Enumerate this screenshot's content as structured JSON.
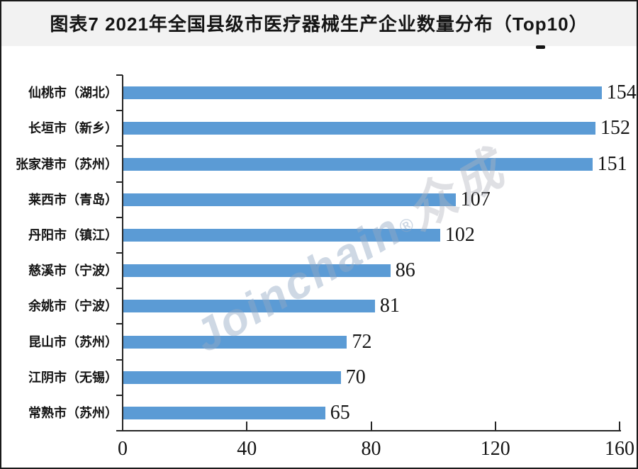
{
  "title": "图表7 2021年全国县级市医疗器械生产企业数量分布（Top10）",
  "watermark": {
    "brand": "Joinchain",
    "registered_mark": "®",
    "brand_cjk": "众成"
  },
  "colors": {
    "bar": "#5B9BD5",
    "title_band_bg": "#F2F2F2",
    "axis": "#262626",
    "text": "#141414"
  },
  "chart_data": {
    "type": "bar",
    "orientation": "horizontal",
    "title": "图表7 2021年全国县级市医疗器械生产企业数量分布（Top10）",
    "categories": [
      "仙桃市（湖北）",
      "长垣市（新乡）",
      "张家港市（苏州）",
      "莱西市（青岛）",
      "丹阳市（镇江）",
      "慈溪市（宁波）",
      "余姚市（宁波）",
      "昆山市（苏州）",
      "江阴市（无锡）",
      "常熟市（苏州）"
    ],
    "values": [
      154,
      152,
      151,
      107,
      102,
      86,
      81,
      72,
      70,
      65
    ],
    "xlabel": "",
    "ylabel": "",
    "xlim": [
      0,
      160
    ],
    "xticks": [
      0,
      40,
      80,
      120,
      160
    ],
    "value_labels_shown": true,
    "grid": false,
    "legend": false
  }
}
